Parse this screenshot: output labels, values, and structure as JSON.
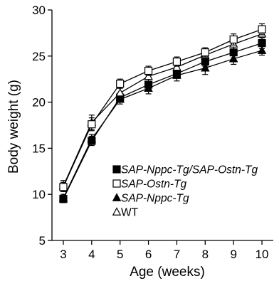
{
  "chart_data": {
    "type": "line",
    "title": "",
    "xlabel": "Age (weeks)",
    "ylabel": "Body weight (g)",
    "x": [
      3,
      4,
      5,
      6,
      7,
      8,
      9,
      10
    ],
    "x_tick_labels": [
      "3",
      "4",
      "5",
      "6",
      "7",
      "8",
      "9",
      "10"
    ],
    "y_tick_labels": [
      "5",
      "10",
      "15",
      "20",
      "25",
      "30"
    ],
    "xlim": [
      2.6,
      10.4
    ],
    "ylim": [
      5,
      30
    ],
    "grid": false,
    "legend_position": "center-right",
    "series": [
      {
        "name": "SAP-Nppc-Tg/SAP-Ostn-Tg",
        "marker": "filled-square",
        "italic": true,
        "values": [
          9.5,
          15.8,
          20.5,
          21.9,
          23.1,
          24.4,
          25.4,
          26.4
        ],
        "errors": [
          0.4,
          0.5,
          0.5,
          0.6,
          0.5,
          0.5,
          0.6,
          0.6
        ]
      },
      {
        "name": "SAP-Ostn-Tg",
        "marker": "open-square",
        "italic": true,
        "values": [
          10.8,
          17.6,
          22.0,
          23.4,
          24.4,
          25.4,
          26.8,
          27.9
        ],
        "errors": [
          0.5,
          0.7,
          0.5,
          0.5,
          0.5,
          0.5,
          0.6,
          0.6
        ]
      },
      {
        "name": "SAP-Nppc-Tg",
        "marker": "filled-triangle",
        "italic": true,
        "values": [
          9.6,
          16.0,
          20.3,
          21.5,
          22.9,
          23.7,
          24.7,
          25.6
        ],
        "errors": [
          0.4,
          0.5,
          0.5,
          0.6,
          0.6,
          0.7,
          0.6,
          0.5
        ]
      },
      {
        "name": "WT",
        "marker": "open-triangle",
        "italic": false,
        "values": [
          10.9,
          17.8,
          21.0,
          22.8,
          23.8,
          25.1,
          26.3,
          27.4
        ],
        "errors": [
          0.6,
          0.8,
          0.6,
          0.6,
          0.6,
          0.5,
          0.7,
          0.6
        ]
      }
    ]
  }
}
